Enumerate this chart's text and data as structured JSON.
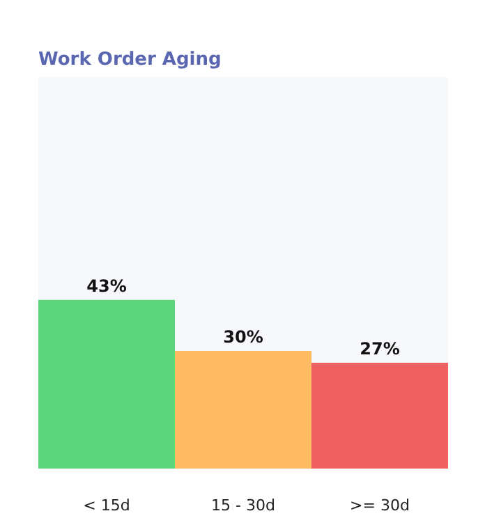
{
  "chart_data": {
    "type": "bar",
    "title": "Work Order Aging",
    "categories": [
      "< 15d",
      "15 - 30d",
      ">= 30d"
    ],
    "values": [
      43,
      30,
      27
    ],
    "value_labels": [
      "43%",
      "30%",
      "27%"
    ],
    "colors": [
      "#5cd67c",
      "#ffbb63",
      "#f06060"
    ]
  }
}
